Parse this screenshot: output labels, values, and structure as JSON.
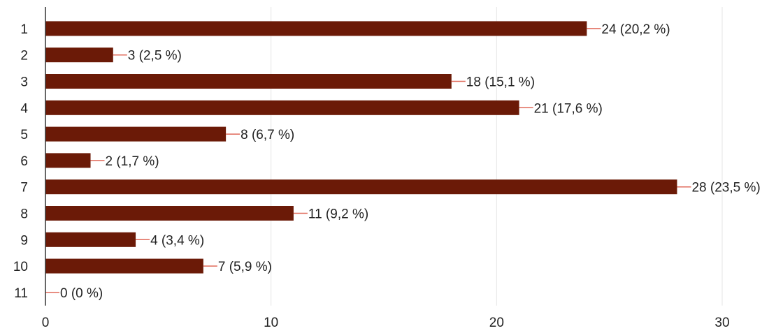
{
  "chart_data": {
    "type": "bar",
    "orientation": "horizontal",
    "categories": [
      "1",
      "2",
      "3",
      "4",
      "5",
      "6",
      "7",
      "8",
      "9",
      "10",
      "11"
    ],
    "values": [
      24,
      3,
      18,
      21,
      8,
      2,
      28,
      11,
      4,
      7,
      0
    ],
    "data_labels": [
      "24 (20,2 %)",
      "3 (2,5 %)",
      "18 (15,1 %)",
      "21 (17,6 %)",
      "8 (6,7 %)",
      "2 (1,7 %)",
      "28 (23,5 %)",
      "11 (9,2 %)",
      "4 (3,4 %)",
      "7 (5,9 %)",
      "0 (0 %)"
    ],
    "x_ticks": [
      0,
      10,
      20,
      30
    ],
    "x_tick_labels": [
      "0",
      "10",
      "20",
      "30"
    ],
    "xlim": [
      0,
      30
    ],
    "grid": true,
    "title": "",
    "xlabel": "",
    "ylabel": "",
    "colors": {
      "bar": "#6b1a07",
      "leader_line": "#e06a5a",
      "grid": "#e6e6e6",
      "axis": "#333333"
    }
  }
}
